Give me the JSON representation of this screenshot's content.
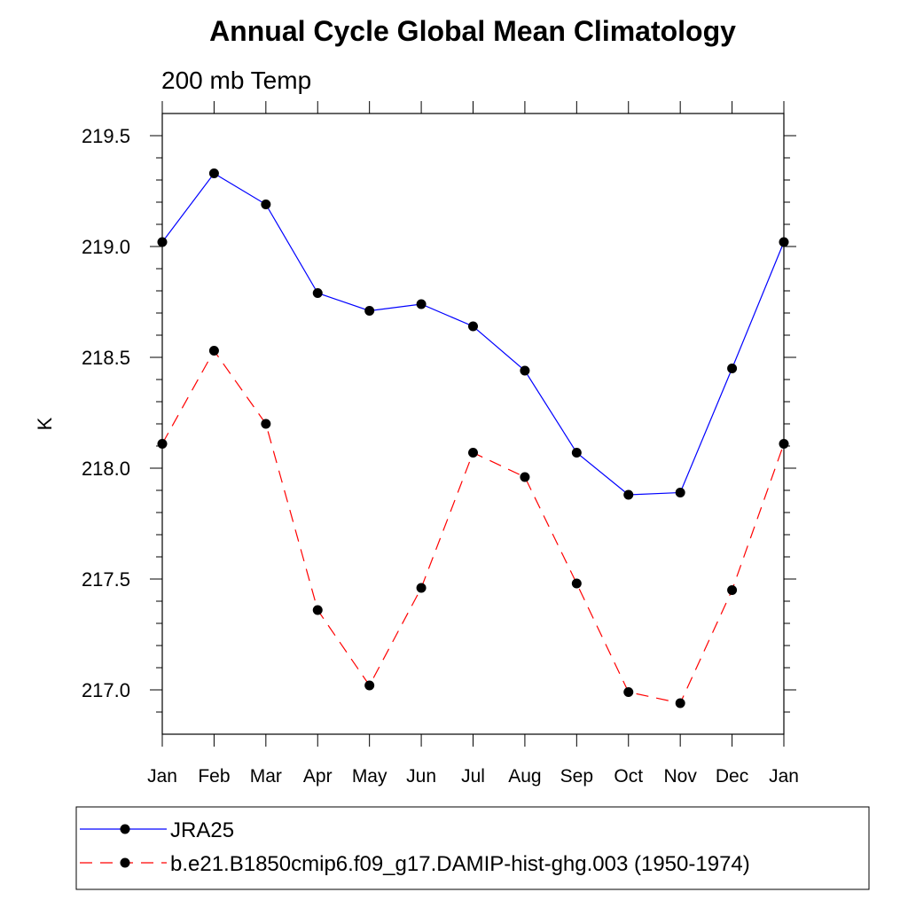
{
  "chart_data": {
    "type": "line",
    "title": "Annual Cycle Global Mean Climatology",
    "subtitle": "200 mb Temp",
    "xlabel": "",
    "ylabel": "K",
    "categories": [
      "Jan",
      "Feb",
      "Mar",
      "Apr",
      "May",
      "Jun",
      "Jul",
      "Aug",
      "Sep",
      "Oct",
      "Nov",
      "Dec",
      "Jan"
    ],
    "ylim": [
      216.8,
      219.6
    ],
    "yticks": [
      217.0,
      217.5,
      218.0,
      218.5,
      219.0,
      219.5
    ],
    "ytick_labels": [
      "217.0",
      "217.5",
      "218.0",
      "218.5",
      "219.0",
      "219.5"
    ],
    "grid": false,
    "legend_position": "bottom",
    "series": [
      {
        "name": "JRA25",
        "color": "#0000ff",
        "line_style": "solid",
        "marker": "filled-circle",
        "values": [
          219.02,
          219.33,
          219.19,
          218.79,
          218.71,
          218.74,
          218.64,
          218.44,
          218.07,
          217.88,
          217.89,
          218.45,
          219.02
        ]
      },
      {
        "name": "b.e21.B1850cmip6.f09_g17.DAMIP-hist-ghg.003 (1950-1974)",
        "color": "#ff0000",
        "line_style": "dashed",
        "marker": "filled-circle",
        "values": [
          218.11,
          218.53,
          218.2,
          217.36,
          217.02,
          217.46,
          218.07,
          217.96,
          217.48,
          216.99,
          216.94,
          217.45,
          218.11
        ]
      }
    ]
  }
}
